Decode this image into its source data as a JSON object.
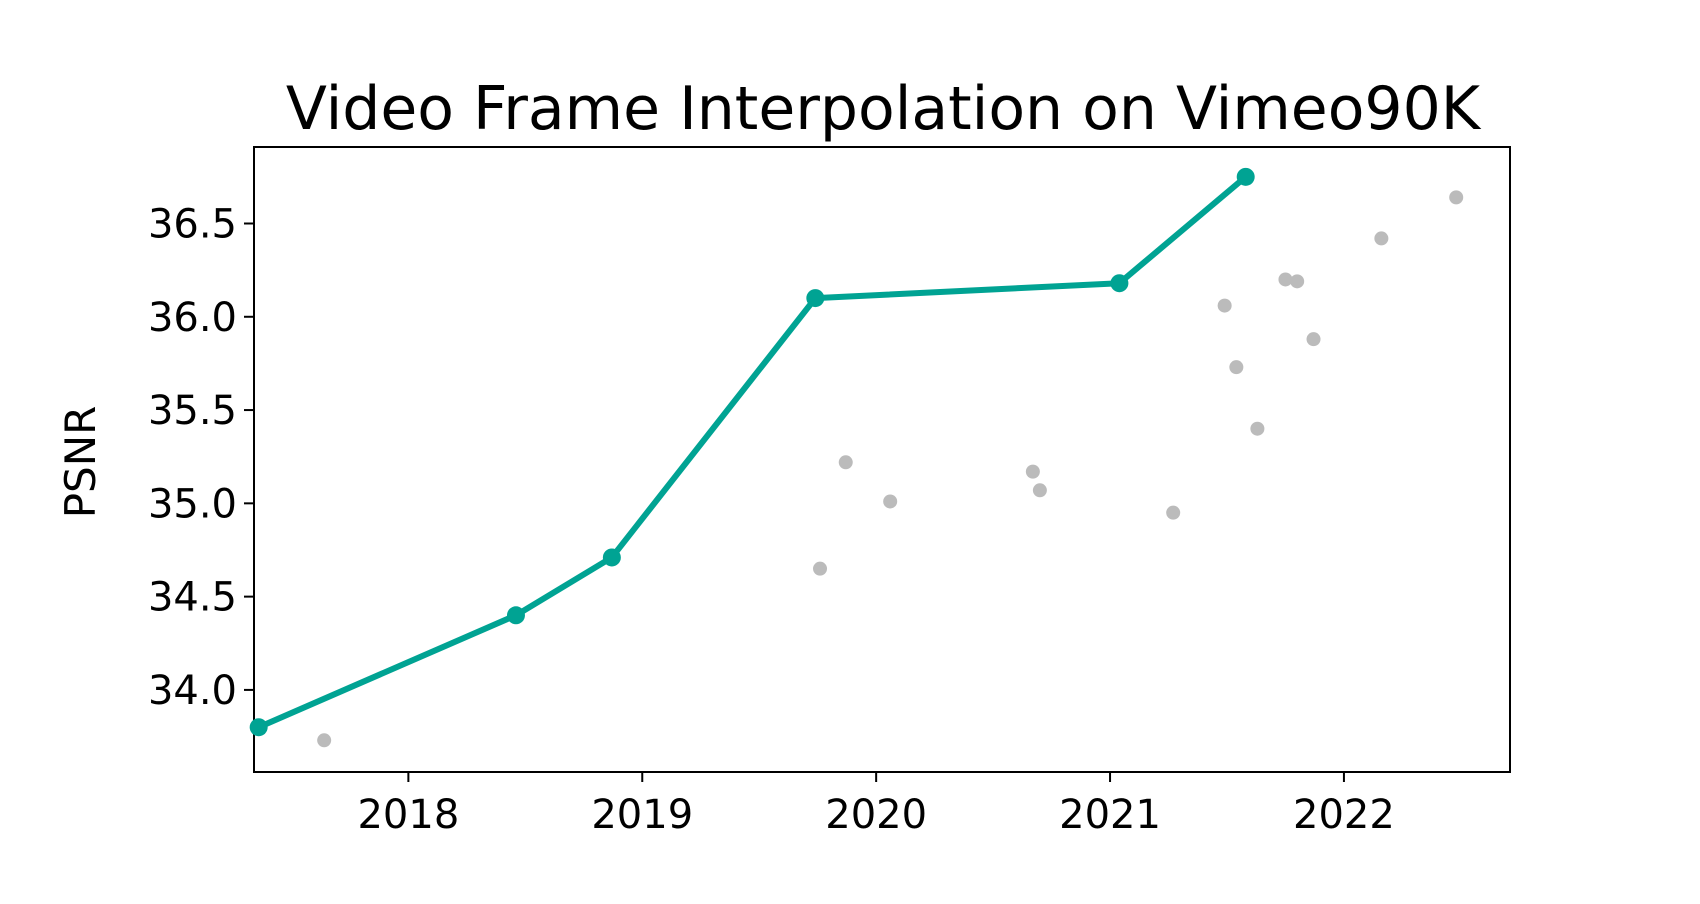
{
  "chart_data": {
    "type": "scatter",
    "title": "Video Frame Interpolation on Vimeo90K",
    "xlabel": "",
    "ylabel": "PSNR",
    "xlim": [
      2017.34,
      2022.71
    ],
    "ylim": [
      33.56,
      36.91
    ],
    "x_ticks": [
      2018,
      2019,
      2020,
      2021,
      2022
    ],
    "x_tick_labels": [
      "2018",
      "2019",
      "2020",
      "2021",
      "2022"
    ],
    "y_ticks": [
      34.0,
      34.5,
      35.0,
      35.5,
      36.0,
      36.5
    ],
    "y_tick_labels": [
      "34.0",
      "34.5",
      "35.0",
      "35.5",
      "36.0",
      "36.5"
    ],
    "grid": false,
    "legend": "none",
    "series": [
      {
        "kind": "line",
        "color": "#00a393",
        "points": [
          {
            "x": 2017.36,
            "y": 33.8
          },
          {
            "x": 2018.46,
            "y": 34.4
          },
          {
            "x": 2018.87,
            "y": 34.71
          },
          {
            "x": 2019.74,
            "y": 36.1
          },
          {
            "x": 2021.04,
            "y": 36.18
          },
          {
            "x": 2021.58,
            "y": 36.75
          }
        ]
      },
      {
        "kind": "scatter",
        "color": "#bbbbbb",
        "points": [
          {
            "x": 2017.64,
            "y": 33.73
          },
          {
            "x": 2019.76,
            "y": 34.65
          },
          {
            "x": 2019.87,
            "y": 35.22
          },
          {
            "x": 2020.06,
            "y": 35.01
          },
          {
            "x": 2020.67,
            "y": 35.17
          },
          {
            "x": 2020.7,
            "y": 35.07
          },
          {
            "x": 2021.27,
            "y": 34.95
          },
          {
            "x": 2021.49,
            "y": 36.06
          },
          {
            "x": 2021.54,
            "y": 35.73
          },
          {
            "x": 2021.63,
            "y": 35.4
          },
          {
            "x": 2021.75,
            "y": 36.2
          },
          {
            "x": 2021.8,
            "y": 36.19
          },
          {
            "x": 2021.87,
            "y": 35.88
          },
          {
            "x": 2022.16,
            "y": 36.42
          },
          {
            "x": 2022.48,
            "y": 36.64
          }
        ]
      }
    ]
  }
}
